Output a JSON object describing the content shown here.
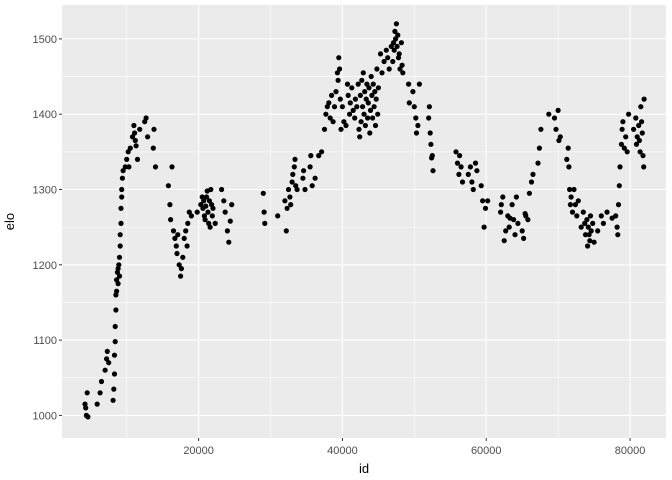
{
  "chart_data": {
    "type": "scatter",
    "title": "",
    "xlabel": "id",
    "ylabel": "elo",
    "xlim": [
      1000,
      85000
    ],
    "ylim": [
      970,
      1545
    ],
    "x_ticks": [
      20000,
      40000,
      60000,
      80000
    ],
    "x_tick_labels": [
      "20000",
      "40000",
      "60000",
      "80000"
    ],
    "y_ticks": [
      1000,
      1100,
      1200,
      1300,
      1400,
      1500
    ],
    "y_tick_labels": [
      "1000",
      "1100",
      "1200",
      "1300",
      "1400",
      "1500"
    ],
    "grid": true,
    "legend": "none",
    "background_color": "#ebebeb",
    "grid_color": "#ffffff",
    "point_color": "#000000",
    "points": [
      [
        4200,
        1015
      ],
      [
        4300,
        1010
      ],
      [
        4400,
        1000
      ],
      [
        4500,
        1030
      ],
      [
        4600,
        998
      ],
      [
        5900,
        1015
      ],
      [
        6300,
        1030
      ],
      [
        6500,
        1045
      ],
      [
        7000,
        1060
      ],
      [
        7200,
        1075
      ],
      [
        7300,
        1085
      ],
      [
        7500,
        1070
      ],
      [
        8100,
        1020
      ],
      [
        8200,
        1035
      ],
      [
        8300,
        1055
      ],
      [
        8300,
        1080
      ],
      [
        8400,
        1098
      ],
      [
        8400,
        1118
      ],
      [
        8500,
        1140
      ],
      [
        8500,
        1160
      ],
      [
        8600,
        1165
      ],
      [
        8600,
        1180
      ],
      [
        8700,
        1190
      ],
      [
        8800,
        1175
      ],
      [
        8800,
        1195
      ],
      [
        8900,
        1200
      ],
      [
        9000,
        1185
      ],
      [
        9000,
        1210
      ],
      [
        9100,
        1225
      ],
      [
        9100,
        1240
      ],
      [
        9200,
        1255
      ],
      [
        9200,
        1275
      ],
      [
        9300,
        1290
      ],
      [
        9300,
        1300
      ],
      [
        9400,
        1315
      ],
      [
        9500,
        1325
      ],
      [
        9800,
        1330
      ],
      [
        10000,
        1340
      ],
      [
        10200,
        1350
      ],
      [
        10300,
        1330
      ],
      [
        10500,
        1355
      ],
      [
        10800,
        1370
      ],
      [
        11000,
        1385
      ],
      [
        11100,
        1375
      ],
      [
        11200,
        1365
      ],
      [
        11300,
        1358
      ],
      [
        11500,
        1340
      ],
      [
        11800,
        1380
      ],
      [
        12500,
        1390
      ],
      [
        12700,
        1395
      ],
      [
        12900,
        1370
      ],
      [
        13700,
        1355
      ],
      [
        13800,
        1380
      ],
      [
        14000,
        1330
      ],
      [
        15800,
        1305
      ],
      [
        16000,
        1280
      ],
      [
        16100,
        1260
      ],
      [
        16300,
        1330
      ],
      [
        16500,
        1245
      ],
      [
        16700,
        1235
      ],
      [
        16900,
        1225
      ],
      [
        17000,
        1215
      ],
      [
        17100,
        1240
      ],
      [
        17300,
        1200
      ],
      [
        17500,
        1185
      ],
      [
        17600,
        1195
      ],
      [
        17800,
        1210
      ],
      [
        18000,
        1235
      ],
      [
        18200,
        1245
      ],
      [
        18400,
        1225
      ],
      [
        18500,
        1255
      ],
      [
        18700,
        1270
      ],
      [
        19000,
        1265
      ],
      [
        19800,
        1270
      ],
      [
        20300,
        1280
      ],
      [
        20500,
        1290
      ],
      [
        20600,
        1275
      ],
      [
        20700,
        1285
      ],
      [
        20800,
        1265
      ],
      [
        20900,
        1260
      ],
      [
        21000,
        1278
      ],
      [
        21100,
        1290
      ],
      [
        21200,
        1298
      ],
      [
        21300,
        1270
      ],
      [
        21400,
        1255
      ],
      [
        21500,
        1285
      ],
      [
        21600,
        1250
      ],
      [
        21700,
        1300
      ],
      [
        21800,
        1280
      ],
      [
        21900,
        1265
      ],
      [
        22000,
        1275
      ],
      [
        22300,
        1255
      ],
      [
        23200,
        1300
      ],
      [
        23500,
        1285
      ],
      [
        23700,
        1270
      ],
      [
        24000,
        1245
      ],
      [
        24200,
        1230
      ],
      [
        24400,
        1258
      ],
      [
        24600,
        1280
      ],
      [
        29000,
        1295
      ],
      [
        29100,
        1270
      ],
      [
        29200,
        1255
      ],
      [
        31000,
        1265
      ],
      [
        32000,
        1285
      ],
      [
        32200,
        1245
      ],
      [
        32300,
        1275
      ],
      [
        32500,
        1300
      ],
      [
        32700,
        1290
      ],
      [
        32800,
        1280
      ],
      [
        33000,
        1310
      ],
      [
        33100,
        1320
      ],
      [
        33300,
        1330
      ],
      [
        33400,
        1340
      ],
      [
        33500,
        1305
      ],
      [
        33700,
        1300
      ],
      [
        34500,
        1315
      ],
      [
        34600,
        1325
      ],
      [
        34800,
        1300
      ],
      [
        35500,
        1330
      ],
      [
        35600,
        1345
      ],
      [
        35800,
        1305
      ],
      [
        36200,
        1315
      ],
      [
        36700,
        1345
      ],
      [
        37100,
        1350
      ],
      [
        37500,
        1380
      ],
      [
        37700,
        1400
      ],
      [
        37900,
        1410
      ],
      [
        38100,
        1415
      ],
      [
        38300,
        1395
      ],
      [
        38500,
        1425
      ],
      [
        38700,
        1390
      ],
      [
        38900,
        1410
      ],
      [
        39100,
        1430
      ],
      [
        39300,
        1455
      ],
      [
        39400,
        1445
      ],
      [
        39500,
        1475
      ],
      [
        39600,
        1460
      ],
      [
        39700,
        1420
      ],
      [
        39800,
        1380
      ],
      [
        40000,
        1410
      ],
      [
        40200,
        1390
      ],
      [
        40500,
        1385
      ],
      [
        40700,
        1440
      ],
      [
        40800,
        1425
      ],
      [
        41000,
        1400
      ],
      [
        41100,
        1415
      ],
      [
        41300,
        1435
      ],
      [
        41500,
        1405
      ],
      [
        41700,
        1395
      ],
      [
        41800,
        1420
      ],
      [
        42000,
        1410
      ],
      [
        42200,
        1440
      ],
      [
        42300,
        1380
      ],
      [
        42400,
        1370
      ],
      [
        42500,
        1425
      ],
      [
        42600,
        1390
      ],
      [
        42700,
        1445
      ],
      [
        42800,
        1410
      ],
      [
        42900,
        1455
      ],
      [
        43000,
        1400
      ],
      [
        43100,
        1430
      ],
      [
        43200,
        1385
      ],
      [
        43300,
        1420
      ],
      [
        43400,
        1440
      ],
      [
        43500,
        1395
      ],
      [
        43600,
        1415
      ],
      [
        43700,
        1435
      ],
      [
        43800,
        1375
      ],
      [
        43900,
        1405
      ],
      [
        44000,
        1450
      ],
      [
        44100,
        1425
      ],
      [
        44200,
        1395
      ],
      [
        44300,
        1440
      ],
      [
        44400,
        1410
      ],
      [
        44500,
        1430
      ],
      [
        44600,
        1385
      ],
      [
        44700,
        1420
      ],
      [
        44800,
        1460
      ],
      [
        44900,
        1400
      ],
      [
        45000,
        1435
      ],
      [
        45300,
        1480
      ],
      [
        45500,
        1455
      ],
      [
        45800,
        1470
      ],
      [
        46100,
        1485
      ],
      [
        46300,
        1475
      ],
      [
        46500,
        1460
      ],
      [
        46800,
        1490
      ],
      [
        47000,
        1470
      ],
      [
        47100,
        1495
      ],
      [
        47200,
        1485
      ],
      [
        47300,
        1510
      ],
      [
        47400,
        1500
      ],
      [
        47500,
        1520
      ],
      [
        47600,
        1490
      ],
      [
        47700,
        1505
      ],
      [
        47800,
        1475
      ],
      [
        47900,
        1480
      ],
      [
        48000,
        1460
      ],
      [
        48200,
        1495
      ],
      [
        48300,
        1465
      ],
      [
        48400,
        1455
      ],
      [
        49200,
        1440
      ],
      [
        49300,
        1415
      ],
      [
        49800,
        1430
      ],
      [
        50000,
        1410
      ],
      [
        50200,
        1395
      ],
      [
        50300,
        1375
      ],
      [
        50500,
        1385
      ],
      [
        50700,
        1440
      ],
      [
        52000,
        1395
      ],
      [
        52100,
        1410
      ],
      [
        52200,
        1375
      ],
      [
        52300,
        1360
      ],
      [
        52400,
        1342
      ],
      [
        52500,
        1345
      ],
      [
        52600,
        1325
      ],
      [
        55800,
        1350
      ],
      [
        56000,
        1335
      ],
      [
        56200,
        1320
      ],
      [
        56300,
        1345
      ],
      [
        56500,
        1330
      ],
      [
        56700,
        1310
      ],
      [
        57500,
        1320
      ],
      [
        57800,
        1330
      ],
      [
        58000,
        1310
      ],
      [
        58200,
        1300
      ],
      [
        58500,
        1335
      ],
      [
        58700,
        1325
      ],
      [
        59300,
        1305
      ],
      [
        59500,
        1285
      ],
      [
        59700,
        1250
      ],
      [
        59900,
        1275
      ],
      [
        60200,
        1285
      ],
      [
        62000,
        1270
      ],
      [
        62100,
        1280
      ],
      [
        62300,
        1290
      ],
      [
        62500,
        1232
      ],
      [
        62700,
        1245
      ],
      [
        63000,
        1265
      ],
      [
        63200,
        1250
      ],
      [
        63300,
        1262
      ],
      [
        63600,
        1280
      ],
      [
        63800,
        1260
      ],
      [
        64000,
        1240
      ],
      [
        64200,
        1290
      ],
      [
        64400,
        1255
      ],
      [
        65000,
        1245
      ],
      [
        65200,
        1235
      ],
      [
        65400,
        1268
      ],
      [
        65500,
        1265
      ],
      [
        65800,
        1260
      ],
      [
        66000,
        1295
      ],
      [
        66300,
        1310
      ],
      [
        66500,
        1320
      ],
      [
        67200,
        1335
      ],
      [
        67400,
        1355
      ],
      [
        67600,
        1380
      ],
      [
        68700,
        1400
      ],
      [
        69500,
        1395
      ],
      [
        69700,
        1380
      ],
      [
        70000,
        1405
      ],
      [
        70100,
        1365
      ],
      [
        70300,
        1370
      ],
      [
        71200,
        1340
      ],
      [
        71400,
        1355
      ],
      [
        71500,
        1330
      ],
      [
        71600,
        1300
      ],
      [
        71700,
        1280
      ],
      [
        71800,
        1290
      ],
      [
        72000,
        1270
      ],
      [
        72200,
        1300
      ],
      [
        72400,
        1280
      ],
      [
        72600,
        1265
      ],
      [
        72800,
        1285
      ],
      [
        73200,
        1250
      ],
      [
        73500,
        1270
      ],
      [
        73700,
        1255
      ],
      [
        73800,
        1240
      ],
      [
        74000,
        1260
      ],
      [
        74100,
        1225
      ],
      [
        74200,
        1250
      ],
      [
        74300,
        1240
      ],
      [
        74400,
        1232
      ],
      [
        74500,
        1265
      ],
      [
        74600,
        1245
      ],
      [
        74800,
        1255
      ],
      [
        75000,
        1230
      ],
      [
        75500,
        1245
      ],
      [
        76000,
        1265
      ],
      [
        76300,
        1255
      ],
      [
        76800,
        1270
      ],
      [
        77500,
        1262
      ],
      [
        78000,
        1265
      ],
      [
        78200,
        1250
      ],
      [
        78300,
        1240
      ],
      [
        78400,
        1280
      ],
      [
        78500,
        1305
      ],
      [
        78600,
        1330
      ],
      [
        78800,
        1360
      ],
      [
        78900,
        1380
      ],
      [
        79000,
        1390
      ],
      [
        79200,
        1355
      ],
      [
        79400,
        1370
      ],
      [
        79600,
        1350
      ],
      [
        79800,
        1400
      ],
      [
        80500,
        1380
      ],
      [
        80800,
        1395
      ],
      [
        80900,
        1360
      ],
      [
        81000,
        1370
      ],
      [
        81200,
        1385
      ],
      [
        81300,
        1365
      ],
      [
        81400,
        1350
      ],
      [
        81500,
        1410
      ],
      [
        81600,
        1390
      ],
      [
        81700,
        1375
      ],
      [
        81800,
        1345
      ],
      [
        81900,
        1330
      ],
      [
        81950,
        1420
      ]
    ]
  }
}
